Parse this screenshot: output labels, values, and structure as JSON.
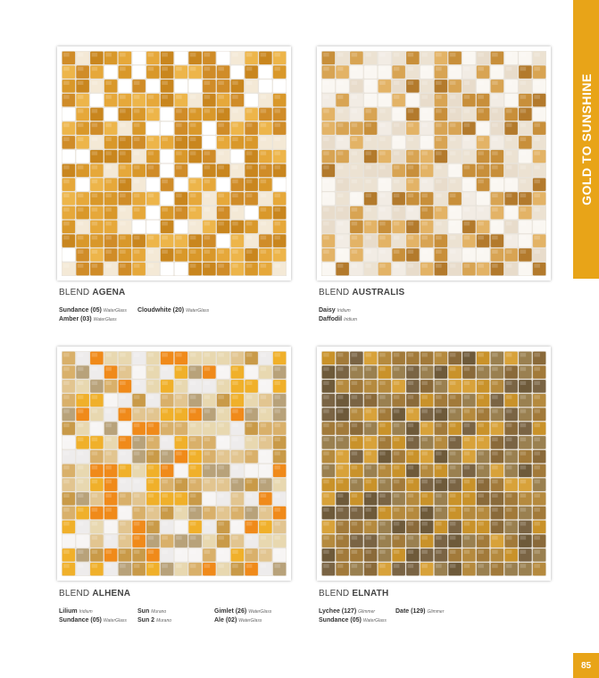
{
  "section_tab": "GOLD TO SUNSHINE",
  "page_number": "85",
  "blend_prefix": "BLEND",
  "blends": [
    {
      "name": "AGENA",
      "palette": [
        "#d9982a",
        "#e6a83a",
        "#c9861e",
        "#edb54a",
        "#d08c28",
        "#ffffff",
        "#f4e9d6"
      ],
      "columns": [
        [
          {
            "name": "Sundance (05)",
            "type": "WaterGlass"
          },
          {
            "name": "Amber (03)",
            "type": "WaterGlass"
          }
        ],
        [
          {
            "name": "Cloudwhite (20)",
            "type": "WaterGlass"
          }
        ]
      ]
    },
    {
      "name": "AUSTRALIS",
      "palette": [
        "#f2ece4",
        "#faf7f2",
        "#e8dccb",
        "#d8a453",
        "#c88f3a",
        "#e3b366",
        "#b37a2c",
        "#ece2d2"
      ],
      "columns": [
        [
          {
            "name": "Daisy",
            "type": "Iridium"
          },
          {
            "name": "Daffodil",
            "type": "Iridium"
          }
        ]
      ]
    },
    {
      "name": "ALHENA",
      "palette": [
        "#eeecec",
        "#f7f5f4",
        "#e2c590",
        "#d9b06a",
        "#f0b02a",
        "#f08a1a",
        "#b8a27a",
        "#e8d8b0",
        "#c99a48"
      ],
      "columns": [
        [
          {
            "name": "Lilium",
            "type": "Iridium"
          },
          {
            "name": "Sundance (05)",
            "type": "WaterGlass"
          }
        ],
        [
          {
            "name": "Sun",
            "type": "Murano"
          },
          {
            "name": "Sun 2",
            "type": "Murano"
          }
        ],
        [
          {
            "name": "Gimlet (26)",
            "type": "WaterGlass"
          },
          {
            "name": "Ale (02)",
            "type": "WaterGlass"
          }
        ]
      ]
    },
    {
      "name": "ELNATH",
      "palette": [
        "#8a6a3a",
        "#a27a3a",
        "#c9922a",
        "#6e5a3a",
        "#b58a3e",
        "#d8a23a",
        "#7a6444",
        "#9a8050"
      ],
      "columns": [
        [
          {
            "name": "Lychee (127)",
            "type": "Glimmer"
          },
          {
            "name": "Sundance (05)",
            "type": "WaterGlass"
          }
        ],
        [
          {
            "name": "Date (129)",
            "type": "Glimmer"
          }
        ]
      ]
    }
  ]
}
